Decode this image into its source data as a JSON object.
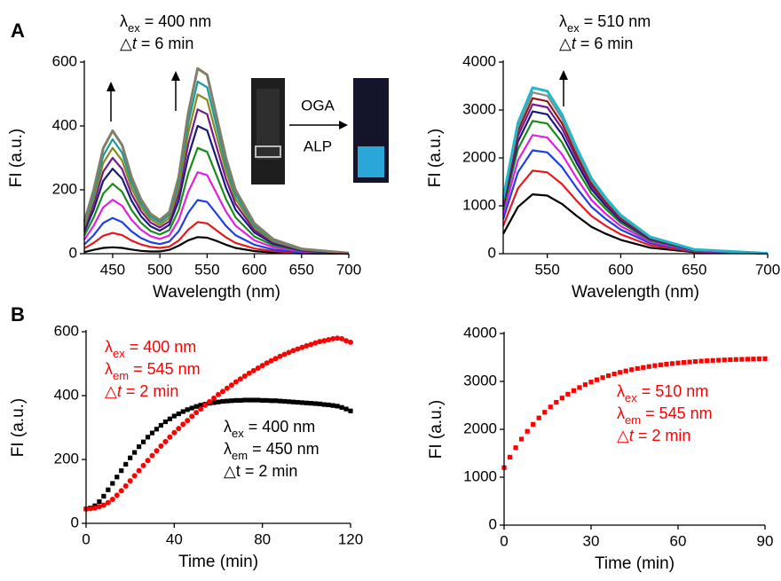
{
  "panel_labels": [
    "A",
    "B"
  ],
  "chart_data": [
    {
      "type": "line",
      "x": [
        420,
        430,
        440,
        450,
        460,
        470,
        480,
        490,
        500,
        510,
        520,
        530,
        540,
        550,
        560,
        570,
        580,
        600,
        620,
        650,
        700
      ],
      "xlim": [
        420,
        700
      ],
      "xticks": [
        450,
        500,
        550,
        600,
        650,
        700
      ],
      "ylim": [
        0,
        600
      ],
      "yticks": [
        0,
        200,
        400,
        600
      ],
      "xlabel": "Wavelength (nm)",
      "ylabel": "FI (a.u.)",
      "annotations": [
        {
          "color": "#000000",
          "lines": [
            [
              {
                "text": "λ"
              },
              {
                "text": "ex",
                "style": "sub"
              },
              {
                "text": " = 400 nm"
              }
            ],
            [
              {
                "text": "△"
              },
              {
                "text": "t",
                "style": "italic"
              },
              {
                "text": " = 6 min"
              }
            ]
          ]
        }
      ],
      "inset": {
        "top": "OGA",
        "bottom": "ALP"
      },
      "series": [
        {
          "color": "#000000",
          "values": [
            5,
            12,
            18,
            20,
            18,
            13,
            9,
            7,
            7,
            12,
            25,
            42,
            52,
            50,
            40,
            28,
            18,
            8,
            4,
            1,
            0
          ]
        },
        {
          "color": "#e41a1c",
          "values": [
            17,
            34,
            56,
            65,
            58,
            41,
            29,
            21,
            18,
            22,
            41,
            75,
            99,
            95,
            73,
            51,
            34,
            16,
            8,
            3,
            0
          ]
        },
        {
          "color": "#1f3fe0",
          "values": [
            29,
            58,
            96,
            112,
            99,
            70,
            49,
            36,
            30,
            38,
            70,
            128,
            168,
            162,
            125,
            87,
            58,
            28,
            13,
            4,
            1
          ]
        },
        {
          "color": "#e020e0",
          "values": [
            44,
            88,
            145,
            169,
            150,
            106,
            75,
            55,
            46,
            57,
            106,
            194,
            255,
            246,
            189,
            132,
            88,
            42,
            20,
            7,
            1
          ]
        },
        {
          "color": "#1a8a1a",
          "values": [
            57,
            114,
            188,
            219,
            194,
            137,
            97,
            71,
            60,
            74,
            137,
            251,
            331,
            319,
            245,
            171,
            114,
            54,
            26,
            9,
            1
          ]
        },
        {
          "color": "#1a1a7a",
          "values": [
            69,
            138,
            228,
            266,
            235,
            166,
            117,
            86,
            72,
            90,
            166,
            304,
            400,
            386,
            297,
            207,
            138,
            66,
            31,
            10,
            1
          ]
        },
        {
          "color": "#7a1a8a",
          "values": [
            78,
            156,
            257,
            300,
            265,
            187,
            133,
            98,
            82,
            101,
            187,
            343,
            452,
            437,
            335,
            234,
            156,
            74,
            35,
            12,
            2
          ]
        },
        {
          "color": "#8a8a1a",
          "values": [
            86,
            172,
            284,
            331,
            292,
            206,
            146,
            108,
            90,
            112,
            206,
            378,
            499,
            482,
            370,
            258,
            172,
            82,
            39,
            13,
            2
          ]
        },
        {
          "color": "#1a9a9a",
          "values": [
            93,
            186,
            307,
            358,
            316,
            223,
            158,
            116,
            98,
            121,
            223,
            409,
            539,
            521,
            400,
            279,
            186,
            88,
            42,
            14,
            2
          ]
        },
        {
          "color": "#7f7f6a",
          "values": [
            100,
            200,
            330,
            385,
            340,
            240,
            170,
            125,
            105,
            130,
            240,
            440,
            580,
            560,
            430,
            300,
            200,
            95,
            45,
            15,
            2
          ]
        }
      ]
    },
    {
      "type": "line",
      "x": [
        520,
        530,
        540,
        550,
        560,
        570,
        580,
        590,
        600,
        620,
        650,
        700
      ],
      "xlim": [
        520,
        700
      ],
      "xticks": [
        550,
        600,
        650,
        700
      ],
      "ylim": [
        0,
        4000
      ],
      "yticks": [
        0,
        1000,
        2000,
        3000,
        4000
      ],
      "xlabel": "Wavelength (nm)",
      "ylabel": "FI (a.u.)",
      "annotations": [
        {
          "color": "#000000",
          "lines": [
            [
              {
                "text": "λ"
              },
              {
                "text": "ex",
                "style": "sub"
              },
              {
                "text": " = 510 nm"
              }
            ],
            [
              {
                "text": "△"
              },
              {
                "text": "t",
                "style": "italic"
              },
              {
                "text": " = 6 min"
              }
            ]
          ]
        }
      ],
      "series": [
        {
          "color": "#000000",
          "values": [
            413,
            975,
            1238,
            1213,
            1038,
            788,
            563,
            413,
            288,
            125,
            31,
            3
          ]
        },
        {
          "color": "#e41a1c",
          "values": [
            578,
            1365,
            1733,
            1698,
            1453,
            1103,
            788,
            578,
            403,
            175,
            44,
            4
          ]
        },
        {
          "color": "#1f3fe0",
          "values": [
            719,
            1700,
            2158,
            2115,
            1809,
            1373,
            981,
            719,
            501,
            218,
            55,
            4
          ]
        },
        {
          "color": "#e020e0",
          "values": [
            825,
            1950,
            2475,
            2425,
            2075,
            1575,
            1125,
            825,
            575,
            250,
            63,
            5
          ]
        },
        {
          "color": "#1a8a1a",
          "values": [
            924,
            2184,
            2772,
            2716,
            2324,
            1764,
            1260,
            924,
            644,
            280,
            70,
            6
          ]
        },
        {
          "color": "#1a1a7a",
          "values": [
            990,
            2340,
            2970,
            2910,
            2490,
            1890,
            1350,
            990,
            690,
            300,
            75,
            6
          ]
        },
        {
          "color": "#7a1a8a",
          "values": [
            1040,
            2457,
            3119,
            3056,
            2615,
            1985,
            1418,
            1040,
            725,
            315,
            79,
            6
          ]
        },
        {
          "color": "#8a1a1a",
          "values": [
            1082,
            2558,
            3247,
            3182,
            2722,
            2066,
            1476,
            1082,
            754,
            328,
            82,
            7
          ]
        },
        {
          "color": "#8a8a8a",
          "values": [
            1122,
            2652,
            3366,
            3298,
            2822,
            2142,
            1530,
            1122,
            782,
            340,
            85,
            7
          ]
        },
        {
          "color": "#20b8c8",
          "values": [
            1155,
            2730,
            3465,
            3395,
            2905,
            2205,
            1575,
            1155,
            805,
            350,
            88,
            7
          ]
        }
      ]
    },
    {
      "type": "scatter",
      "x": [
        0,
        2,
        4,
        6,
        8,
        10,
        12,
        14,
        16,
        18,
        20,
        22,
        24,
        26,
        28,
        30,
        32,
        34,
        36,
        38,
        40,
        42,
        44,
        46,
        48,
        50,
        52,
        54,
        56,
        58,
        60,
        62,
        64,
        66,
        68,
        70,
        72,
        74,
        76,
        78,
        80,
        82,
        84,
        86,
        88,
        90,
        92,
        94,
        96,
        98,
        100,
        102,
        104,
        106,
        108,
        110,
        112,
        114,
        116,
        118,
        120
      ],
      "xlim": [
        0,
        120
      ],
      "xticks": [
        0,
        40,
        80,
        120
      ],
      "ylim": [
        0,
        600
      ],
      "yticks": [
        0,
        200,
        400,
        600
      ],
      "xlabel": "Time (min)",
      "ylabel": "FI (a.u.)",
      "annotations": [
        {
          "color": "#ff0000",
          "lines": [
            [
              {
                "text": "λ"
              },
              {
                "text": "ex",
                "style": "sub"
              },
              {
                "text": " = 400 nm"
              }
            ],
            [
              {
                "text": "λ"
              },
              {
                "text": "em",
                "style": "sub"
              },
              {
                "text": " = 545 nm"
              }
            ],
            [
              {
                "text": "△"
              },
              {
                "text": "t",
                "style": "italic"
              },
              {
                "text": " = 2 min"
              }
            ]
          ]
        },
        {
          "color": "#000000",
          "lines": [
            [
              {
                "text": "λ"
              },
              {
                "text": "ex",
                "style": "sub"
              },
              {
                "text": " = 400 nm"
              }
            ],
            [
              {
                "text": "λ"
              },
              {
                "text": "em",
                "style": "sub"
              },
              {
                "text": " = 450 nm"
              }
            ],
            [
              {
                "text": "△t = 2 min"
              }
            ]
          ]
        }
      ],
      "series": [
        {
          "color": "#000000",
          "marker": "square",
          "values": [
            45,
            48,
            55,
            68,
            85,
            105,
            125,
            145,
            165,
            185,
            205,
            222,
            240,
            255,
            270,
            283,
            295,
            307,
            318,
            327,
            336,
            343,
            350,
            356,
            361,
            366,
            370,
            373,
            376,
            378,
            380,
            382,
            383,
            384,
            385,
            385,
            386,
            386,
            386,
            386,
            385,
            385,
            384,
            384,
            383,
            382,
            381,
            380,
            379,
            378,
            377,
            376,
            375,
            374,
            372,
            371,
            369,
            367,
            363,
            358,
            352
          ]
        },
        {
          "color": "#ff0000",
          "marker": "circle",
          "values": [
            45,
            46,
            48,
            52,
            57,
            65,
            75,
            88,
            102,
            117,
            133,
            149,
            165,
            181,
            197,
            212,
            227,
            242,
            256,
            270,
            284,
            297,
            310,
            322,
            335,
            347,
            358,
            370,
            381,
            392,
            403,
            413,
            423,
            433,
            443,
            452,
            461,
            470,
            478,
            486,
            494,
            502,
            509,
            516,
            523,
            529,
            535,
            541,
            546,
            551,
            556,
            560,
            565,
            569,
            572,
            575,
            578,
            580,
            578,
            572,
            567
          ]
        }
      ]
    },
    {
      "type": "scatter",
      "x": [
        0,
        2,
        4,
        6,
        8,
        10,
        12,
        14,
        16,
        18,
        20,
        22,
        24,
        26,
        28,
        30,
        32,
        34,
        36,
        38,
        40,
        42,
        44,
        46,
        48,
        50,
        52,
        54,
        56,
        58,
        60,
        62,
        64,
        66,
        68,
        70,
        72,
        74,
        76,
        78,
        80,
        82,
        84,
        86,
        88,
        90
      ],
      "xlim": [
        0,
        90
      ],
      "xticks": [
        0,
        30,
        60,
        90
      ],
      "ylim": [
        0,
        4000
      ],
      "yticks": [
        0,
        1000,
        2000,
        3000,
        4000
      ],
      "xlabel": "Time (min)",
      "ylabel": "FI (a.u.)",
      "annotations": [
        {
          "color": "#ff0000",
          "lines": [
            [
              {
                "text": "λ"
              },
              {
                "text": "ex",
                "style": "sub"
              },
              {
                "text": " = 510 nm"
              }
            ],
            [
              {
                "text": "λ"
              },
              {
                "text": "em",
                "style": "sub"
              },
              {
                "text": " = 545 nm"
              }
            ],
            [
              {
                "text": "△"
              },
              {
                "text": "t",
                "style": "italic"
              },
              {
                "text": " = 2 min"
              }
            ]
          ]
        }
      ],
      "series": [
        {
          "color": "#ff0000",
          "marker": "square",
          "values": [
            1200,
            1419,
            1616,
            1796,
            1959,
            2104,
            2237,
            2357,
            2467,
            2564,
            2654,
            2734,
            2808,
            2872,
            2932,
            2987,
            3035,
            3079,
            3120,
            3155,
            3189,
            3219,
            3245,
            3270,
            3291,
            3311,
            3330,
            3346,
            3360,
            3373,
            3385,
            3396,
            3406,
            3415,
            3424,
            3431,
            3438,
            3443,
            3449,
            3454,
            3458,
            3461,
            3465,
            3468,
            3472,
            3475
          ]
        }
      ]
    }
  ]
}
